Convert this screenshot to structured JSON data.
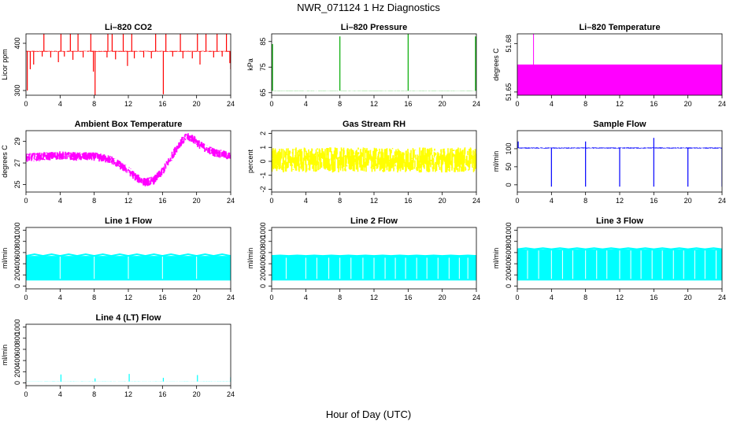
{
  "figure": {
    "title": "NWR_071124  1 Hz Diagnostics",
    "xlabel": "Hour of Day (UTC)"
  },
  "chart_data": [
    {
      "type": "line",
      "title": "Li–820 CO2",
      "ylabel": "Licor ppm",
      "color": "#ff0000",
      "xlim": [
        0,
        24
      ],
      "xticks": [
        0,
        4,
        8,
        12,
        16,
        20,
        24
      ],
      "ylim": [
        290,
        420
      ],
      "yticks": [
        300,
        400
      ],
      "series": [
        {
          "baseline": 383,
          "noise": 2,
          "dips": [
            [
              0.15,
              300
            ],
            [
              0.5,
              345
            ],
            [
              0.9,
              355
            ],
            [
              1.9,
              372
            ],
            [
              2.9,
              370
            ],
            [
              3.8,
              360
            ],
            [
              4.5,
              372
            ],
            [
              5.5,
              365
            ],
            [
              6.7,
              370
            ],
            [
              7.9,
              340
            ],
            [
              8.1,
              290
            ],
            [
              9.5,
              370
            ],
            [
              10.5,
              366
            ],
            [
              11.9,
              352
            ],
            [
              12.7,
              368
            ],
            [
              13.8,
              370
            ],
            [
              14.7,
              368
            ],
            [
              16.1,
              292
            ],
            [
              17.2,
              372
            ],
            [
              18.4,
              368
            ],
            [
              19.5,
              368
            ],
            [
              20.4,
              355
            ],
            [
              22.0,
              370
            ],
            [
              23.0,
              372
            ],
            [
              23.9,
              358
            ],
            [
              24.0,
              345
            ]
          ],
          "spikes": [
            2.1,
            4.1,
            5.2,
            6.1,
            7.6,
            9.6,
            10.1,
            11.4,
            12.4,
            15.2,
            16.4,
            18.1,
            20.1,
            21.1,
            22.4,
            23.5
          ]
        }
      ]
    },
    {
      "type": "line",
      "title": "Li–820 Pressure",
      "ylabel": "kPa",
      "color": "#00aa00",
      "xlim": [
        0,
        24
      ],
      "xticks": [
        0,
        4,
        8,
        12,
        16,
        20,
        24
      ],
      "ylim": [
        64,
        88
      ],
      "yticks": [
        65,
        75,
        85
      ],
      "series": [
        {
          "baseline": 65.8,
          "noise": 0.1,
          "spikes": [
            [
              0.1,
              84
            ],
            [
              8.0,
              87
            ],
            [
              16.0,
              88
            ],
            [
              23.9,
              87
            ]
          ]
        }
      ]
    },
    {
      "type": "bar-fill",
      "title": "Li–820 Temperature",
      "ylabel": "degrees C",
      "color": "#ff00ff",
      "xlim": [
        0,
        24
      ],
      "xticks": [
        0,
        4,
        8,
        12,
        16,
        20,
        24
      ],
      "ylim": [
        51.648,
        51.686
      ],
      "yticks": [
        51.65,
        51.68
      ],
      "series": [
        {
          "fill_from": 51.648,
          "fill_to": 51.667,
          "spike_x": 1.9,
          "spike_y": 51.686
        }
      ]
    },
    {
      "type": "line",
      "title": "Ambient Box Temperature",
      "ylabel": "degrees C",
      "color": "#ff00ff",
      "xlim": [
        0,
        24
      ],
      "xticks": [
        0,
        4,
        8,
        12,
        16,
        20,
        24
      ],
      "ylim": [
        24.3,
        30
      ],
      "yticks": [
        25,
        27,
        29
      ],
      "series": [
        {
          "x": [
            0,
            2,
            4,
            6,
            8,
            10,
            12,
            13,
            14,
            15,
            16,
            17,
            18,
            18.8,
            19.5,
            20.5,
            22,
            24
          ],
          "y": [
            27.5,
            27.6,
            27.7,
            27.6,
            27.6,
            27.3,
            26.3,
            25.6,
            25.2,
            25.4,
            26.2,
            27.5,
            28.8,
            29.4,
            29.3,
            28.6,
            28.0,
            27.6
          ],
          "noise": 0.8
        }
      ]
    },
    {
      "type": "line",
      "title": "Gas Stream RH",
      "ylabel": "percent",
      "color": "#ffff00",
      "xlim": [
        0,
        24
      ],
      "xticks": [
        0,
        4,
        8,
        12,
        16,
        20,
        24
      ],
      "ylim": [
        -2.2,
        2.2
      ],
      "yticks": [
        -2,
        -1,
        0,
        1,
        2
      ],
      "series": [
        {
          "baseline": 0.1,
          "noise": 1.8
        }
      ]
    },
    {
      "type": "line",
      "title": "Sample Flow",
      "ylabel": "ml/min",
      "color": "#0000ff",
      "xlim": [
        0,
        24
      ],
      "xticks": [
        0,
        4,
        8,
        12,
        16,
        20,
        24
      ],
      "ylim": [
        -20,
        150
      ],
      "yticks": [
        0,
        50,
        100
      ],
      "series": [
        {
          "baseline": 102,
          "noise": 3,
          "dips": [
            [
              4.0,
              -5
            ],
            [
              8.0,
              -5
            ],
            [
              12.0,
              -5
            ],
            [
              16.0,
              -5
            ],
            [
              20.0,
              -5
            ],
            [
              24.0,
              -5
            ]
          ],
          "spikes": [
            [
              0.1,
              120
            ],
            [
              8.0,
              120
            ],
            [
              16.0,
              130
            ]
          ]
        }
      ]
    },
    {
      "type": "band",
      "title": "Line 1 Flow",
      "ylabel": "ml/min",
      "color": "#00ffff",
      "xlim": [
        0,
        24
      ],
      "xticks": [
        0,
        4,
        8,
        12,
        16,
        20,
        24
      ],
      "ylim": [
        -50,
        1050
      ],
      "yticks": [
        0,
        200,
        400,
        600,
        800,
        1000
      ],
      "series": [
        {
          "low": 100,
          "high": 540,
          "high_alt": 570,
          "gaps": [
            4.0,
            8.0,
            12.0,
            16.0,
            20.0
          ]
        }
      ]
    },
    {
      "type": "band",
      "title": "Line 2 Flow",
      "ylabel": "ml/min",
      "color": "#00ffff",
      "xlim": [
        0,
        24
      ],
      "xticks": [
        0,
        4,
        8,
        12,
        16,
        20,
        24
      ],
      "ylim": [
        -50,
        1050
      ],
      "yticks": [
        0,
        200,
        400,
        600,
        800,
        1000
      ],
      "series": [
        {
          "low": 100,
          "high": 540,
          "high_alt": 550,
          "gaps": [
            1.7,
            4.0,
            5.3,
            6.7,
            8.0,
            9.3,
            10.7,
            12.0,
            13.3,
            14.5,
            15.7,
            17.0,
            18.2,
            19.5,
            20.8,
            22.0,
            23.0
          ]
        }
      ]
    },
    {
      "type": "band",
      "title": "Line 3 Flow",
      "ylabel": "ml/min",
      "color": "#00ffff",
      "xlim": [
        0,
        24
      ],
      "xticks": [
        0,
        4,
        8,
        12,
        16,
        20,
        24
      ],
      "ylim": [
        -50,
        1050
      ],
      "yticks": [
        0,
        200,
        400,
        600,
        800,
        1000
      ],
      "series": [
        {
          "low": 100,
          "high": 660,
          "high_alt": 680,
          "gaps": [
            1.2,
            2.5,
            4.0,
            5.3,
            6.5,
            8.0,
            9.3,
            10.5,
            12.0,
            13.3,
            14.5,
            15.8,
            17.0,
            18.3,
            19.5,
            20.8,
            22.0,
            23.3
          ]
        }
      ]
    },
    {
      "type": "line",
      "title": "Line 4 (LT) Flow",
      "ylabel": "ml/min",
      "color": "#00ffff",
      "xlim": [
        0,
        24
      ],
      "xticks": [
        0,
        4,
        8,
        12,
        16,
        20,
        24
      ],
      "ylim": [
        -50,
        1050
      ],
      "yticks": [
        0,
        200,
        400,
        600,
        800,
        1000
      ],
      "series": [
        {
          "baseline": 25,
          "noise": 4,
          "spikes": [
            [
              4.1,
              150
            ],
            [
              8.1,
              80
            ],
            [
              12.1,
              160
            ],
            [
              16.1,
              90
            ],
            [
              20.1,
              140
            ],
            [
              24.0,
              100
            ]
          ]
        }
      ]
    }
  ]
}
